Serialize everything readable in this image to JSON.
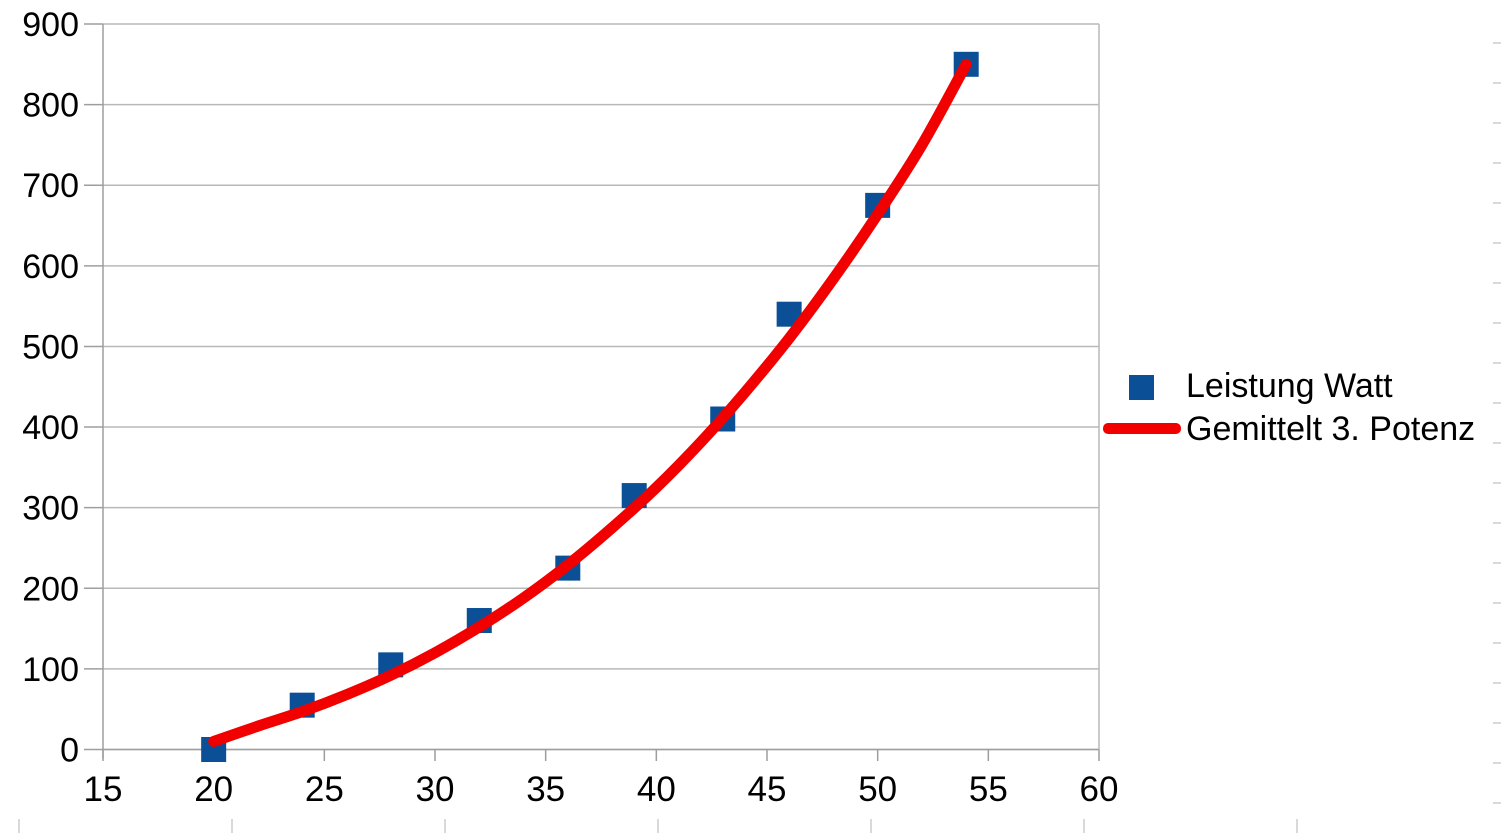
{
  "chart_data": {
    "type": "scatter",
    "title": "",
    "xlabel": "",
    "ylabel": "",
    "x_axis": {
      "min": 15,
      "max": 60,
      "tick_step": 5,
      "ticks": [
        15,
        20,
        25,
        30,
        35,
        40,
        45,
        50,
        55,
        60
      ]
    },
    "y_axis": {
      "min": 0,
      "max": 900,
      "tick_step": 100,
      "ticks": [
        0,
        100,
        200,
        300,
        400,
        500,
        600,
        700,
        800,
        900
      ]
    },
    "grid": {
      "horizontal": true,
      "vertical": false
    },
    "legend_position": "right",
    "series": [
      {
        "name": "Leistung Watt",
        "kind": "points",
        "marker": "square",
        "color": "#0b4f97",
        "points": [
          [
            20,
            0
          ],
          [
            24,
            55
          ],
          [
            28,
            105
          ],
          [
            32,
            160
          ],
          [
            36,
            225
          ],
          [
            39,
            315
          ],
          [
            43,
            410
          ],
          [
            46,
            540
          ],
          [
            50,
            675
          ],
          [
            54,
            850
          ]
        ]
      },
      {
        "name": "Gemittelt 3. Potenz",
        "kind": "line",
        "color": "#f20000",
        "points": [
          [
            20,
            10
          ],
          [
            22,
            29
          ],
          [
            24,
            47
          ],
          [
            26,
            68
          ],
          [
            28,
            92
          ],
          [
            30,
            120
          ],
          [
            32,
            152
          ],
          [
            34,
            188
          ],
          [
            36,
            229
          ],
          [
            38,
            275
          ],
          [
            40,
            325
          ],
          [
            42,
            381
          ],
          [
            44,
            443
          ],
          [
            46,
            510
          ],
          [
            48,
            584
          ],
          [
            50,
            664
          ],
          [
            52,
            750
          ],
          [
            54,
            850
          ]
        ]
      }
    ]
  },
  "legend": {
    "items": [
      {
        "label": "Leistung Watt"
      },
      {
        "label": "Gemittelt 3. Potenz"
      }
    ]
  },
  "colors": {
    "series1": "#0b4f97",
    "series2": "#f20000",
    "gridline": "#b9b9b9",
    "axis": "#9e9e9e",
    "text": "#000000",
    "sheet_mark": "#d9d9d9"
  }
}
